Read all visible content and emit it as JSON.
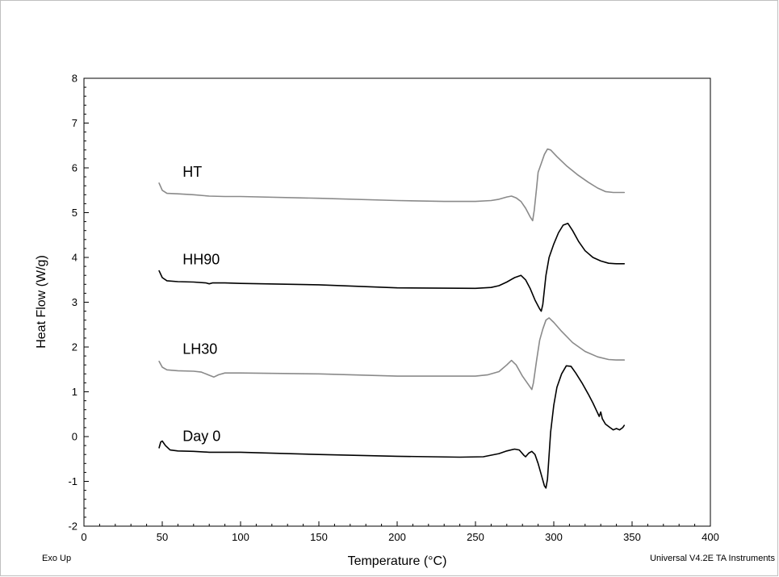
{
  "chart_data": {
    "type": "line",
    "title": "",
    "xlabel": "Temperature (°C)",
    "ylabel": "Heat Flow (W/g)",
    "xlim": [
      0,
      400
    ],
    "ylim": [
      -2,
      8
    ],
    "x_ticks": [
      0,
      50,
      100,
      150,
      200,
      250,
      300,
      350,
      400
    ],
    "y_ticks": [
      -2,
      -1,
      0,
      1,
      2,
      3,
      4,
      5,
      6,
      7,
      8
    ],
    "grid": false,
    "legend": "none",
    "footer_left": "Exo Up",
    "footer_right": "Universal V4.2E TA Instruments",
    "series": [
      {
        "name": "HT",
        "color": "#8a8a8a",
        "label_pos": [
          63,
          5.8
        ],
        "points": [
          [
            48,
            5.66
          ],
          [
            50,
            5.5
          ],
          [
            53,
            5.43
          ],
          [
            60,
            5.42
          ],
          [
            70,
            5.4
          ],
          [
            80,
            5.37
          ],
          [
            90,
            5.36
          ],
          [
            100,
            5.36
          ],
          [
            150,
            5.32
          ],
          [
            200,
            5.27
          ],
          [
            230,
            5.25
          ],
          [
            250,
            5.25
          ],
          [
            260,
            5.27
          ],
          [
            265,
            5.3
          ],
          [
            270,
            5.35
          ],
          [
            273,
            5.37
          ],
          [
            276,
            5.33
          ],
          [
            279,
            5.25
          ],
          [
            282,
            5.1
          ],
          [
            285,
            4.9
          ],
          [
            286.5,
            4.82
          ],
          [
            287.5,
            5.05
          ],
          [
            289,
            5.55
          ],
          [
            290,
            5.9
          ],
          [
            292,
            6.1
          ],
          [
            294,
            6.3
          ],
          [
            296,
            6.42
          ],
          [
            298,
            6.4
          ],
          [
            302,
            6.25
          ],
          [
            308,
            6.05
          ],
          [
            315,
            5.85
          ],
          [
            322,
            5.68
          ],
          [
            328,
            5.55
          ],
          [
            333,
            5.47
          ],
          [
            338,
            5.45
          ],
          [
            345,
            5.45
          ]
        ]
      },
      {
        "name": "HH90",
        "color": "#000000",
        "label_pos": [
          63,
          3.85
        ],
        "points": [
          [
            48,
            3.7
          ],
          [
            50,
            3.55
          ],
          [
            53,
            3.48
          ],
          [
            60,
            3.46
          ],
          [
            70,
            3.45
          ],
          [
            78,
            3.43
          ],
          [
            80,
            3.41
          ],
          [
            82,
            3.43
          ],
          [
            90,
            3.43
          ],
          [
            100,
            3.42
          ],
          [
            150,
            3.39
          ],
          [
            200,
            3.32
          ],
          [
            250,
            3.31
          ],
          [
            260,
            3.33
          ],
          [
            265,
            3.37
          ],
          [
            270,
            3.45
          ],
          [
            275,
            3.55
          ],
          [
            279,
            3.6
          ],
          [
            282,
            3.5
          ],
          [
            285,
            3.3
          ],
          [
            288,
            3.05
          ],
          [
            291,
            2.85
          ],
          [
            292,
            2.8
          ],
          [
            293,
            2.95
          ],
          [
            295,
            3.6
          ],
          [
            297,
            4.0
          ],
          [
            300,
            4.3
          ],
          [
            303,
            4.55
          ],
          [
            306,
            4.72
          ],
          [
            309,
            4.76
          ],
          [
            312,
            4.6
          ],
          [
            316,
            4.35
          ],
          [
            320,
            4.15
          ],
          [
            325,
            4.0
          ],
          [
            330,
            3.92
          ],
          [
            335,
            3.87
          ],
          [
            340,
            3.86
          ],
          [
            345,
            3.86
          ]
        ]
      },
      {
        "name": "LH30",
        "color": "#8a8a8a",
        "label_pos": [
          63,
          1.85
        ],
        "points": [
          [
            48,
            1.68
          ],
          [
            50,
            1.55
          ],
          [
            53,
            1.49
          ],
          [
            60,
            1.47
          ],
          [
            70,
            1.46
          ],
          [
            75,
            1.44
          ],
          [
            80,
            1.37
          ],
          [
            83,
            1.33
          ],
          [
            86,
            1.38
          ],
          [
            90,
            1.42
          ],
          [
            100,
            1.42
          ],
          [
            150,
            1.4
          ],
          [
            200,
            1.35
          ],
          [
            250,
            1.35
          ],
          [
            258,
            1.38
          ],
          [
            265,
            1.45
          ],
          [
            270,
            1.6
          ],
          [
            273,
            1.7
          ],
          [
            276,
            1.6
          ],
          [
            280,
            1.35
          ],
          [
            284,
            1.15
          ],
          [
            286,
            1.05
          ],
          [
            287,
            1.2
          ],
          [
            289,
            1.7
          ],
          [
            291,
            2.15
          ],
          [
            293,
            2.4
          ],
          [
            295,
            2.6
          ],
          [
            297,
            2.65
          ],
          [
            300,
            2.55
          ],
          [
            305,
            2.35
          ],
          [
            312,
            2.1
          ],
          [
            320,
            1.9
          ],
          [
            328,
            1.78
          ],
          [
            335,
            1.72
          ],
          [
            340,
            1.71
          ],
          [
            345,
            1.71
          ]
        ]
      },
      {
        "name": "Day 0",
        "color": "#000000",
        "label_pos": [
          63,
          -0.1
        ],
        "points": [
          [
            48,
            -0.25
          ],
          [
            49,
            -0.12
          ],
          [
            50,
            -0.1
          ],
          [
            52,
            -0.2
          ],
          [
            55,
            -0.3
          ],
          [
            60,
            -0.32
          ],
          [
            70,
            -0.33
          ],
          [
            80,
            -0.35
          ],
          [
            100,
            -0.35
          ],
          [
            150,
            -0.4
          ],
          [
            200,
            -0.44
          ],
          [
            240,
            -0.46
          ],
          [
            255,
            -0.45
          ],
          [
            265,
            -0.38
          ],
          [
            270,
            -0.32
          ],
          [
            275,
            -0.28
          ],
          [
            278,
            -0.3
          ],
          [
            281,
            -0.42
          ],
          [
            282,
            -0.45
          ],
          [
            284,
            -0.37
          ],
          [
            286,
            -0.33
          ],
          [
            288,
            -0.4
          ],
          [
            290,
            -0.6
          ],
          [
            292,
            -0.85
          ],
          [
            294,
            -1.1
          ],
          [
            295,
            -1.15
          ],
          [
            296,
            -0.95
          ],
          [
            298,
            0.1
          ],
          [
            300,
            0.7
          ],
          [
            302,
            1.1
          ],
          [
            305,
            1.4
          ],
          [
            308,
            1.58
          ],
          [
            311,
            1.57
          ],
          [
            314,
            1.42
          ],
          [
            318,
            1.2
          ],
          [
            322,
            0.95
          ],
          [
            325,
            0.75
          ],
          [
            327,
            0.6
          ],
          [
            329,
            0.45
          ],
          [
            330,
            0.55
          ],
          [
            331,
            0.4
          ],
          [
            333,
            0.28
          ],
          [
            336,
            0.2
          ],
          [
            338,
            0.15
          ],
          [
            340,
            0.18
          ],
          [
            342,
            0.15
          ],
          [
            344,
            0.2
          ],
          [
            345,
            0.25
          ]
        ]
      }
    ]
  }
}
